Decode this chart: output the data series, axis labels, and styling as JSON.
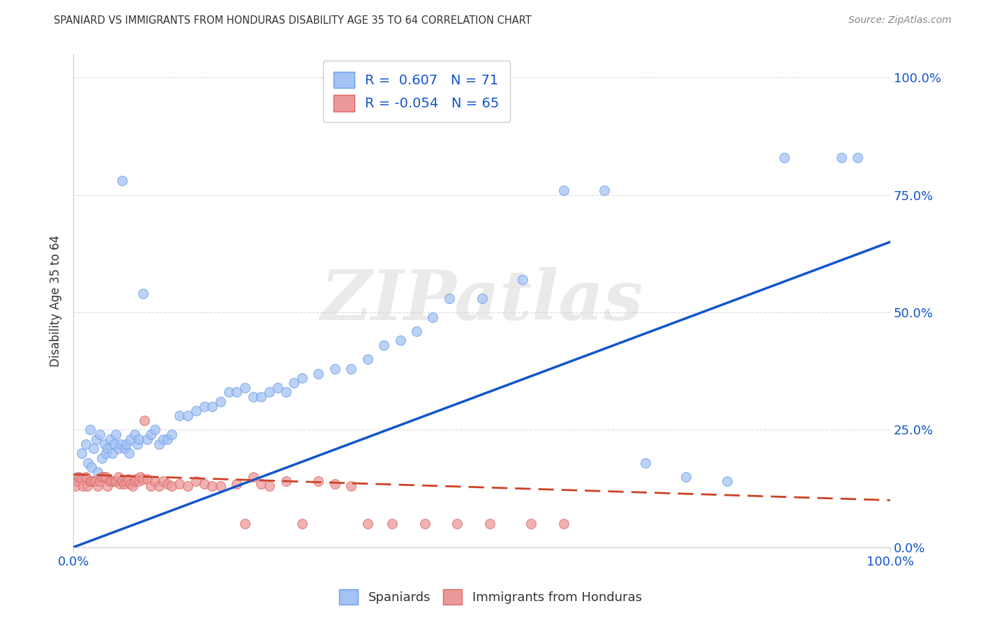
{
  "title": "SPANIARD VS IMMIGRANTS FROM HONDURAS DISABILITY AGE 35 TO 64 CORRELATION CHART",
  "source": "Source: ZipAtlas.com",
  "ylabel": "Disability Age 35 to 64",
  "ytick_labels": [
    "0.0%",
    "25.0%",
    "50.0%",
    "75.0%",
    "100.0%"
  ],
  "ytick_values": [
    0.0,
    0.25,
    0.5,
    0.75,
    1.0
  ],
  "xlim": [
    0.0,
    1.0
  ],
  "ylim": [
    0.0,
    1.05
  ],
  "blue_scatter_color": "#a4c2f4",
  "blue_edge_color": "#6d9eeb",
  "pink_scatter_color": "#ea9999",
  "pink_edge_color": "#e06666",
  "blue_line_color": "#1155cc",
  "pink_line_color": "#cc4125",
  "R_blue": 0.607,
  "N_blue": 71,
  "R_pink": -0.054,
  "N_pink": 65,
  "watermark": "ZIPatlas",
  "legend_label_blue": "Spaniards",
  "legend_label_pink": "Immigrants from Honduras",
  "blue_line_x": [
    0.0,
    1.0
  ],
  "blue_line_y": [
    0.0,
    0.65
  ],
  "pink_line_x": [
    0.0,
    1.0
  ],
  "pink_line_y": [
    0.155,
    0.1
  ],
  "blue_x": [
    0.005,
    0.01,
    0.015,
    0.018,
    0.02,
    0.022,
    0.025,
    0.028,
    0.03,
    0.032,
    0.035,
    0.038,
    0.04,
    0.042,
    0.045,
    0.048,
    0.05,
    0.052,
    0.055,
    0.058,
    0.06,
    0.063,
    0.065,
    0.068,
    0.07,
    0.075,
    0.078,
    0.08,
    0.085,
    0.09,
    0.095,
    0.1,
    0.105,
    0.11,
    0.115,
    0.12,
    0.13,
    0.14,
    0.15,
    0.16,
    0.17,
    0.18,
    0.19,
    0.2,
    0.21,
    0.22,
    0.23,
    0.24,
    0.25,
    0.26,
    0.27,
    0.28,
    0.3,
    0.32,
    0.34,
    0.36,
    0.38,
    0.4,
    0.42,
    0.44,
    0.46,
    0.5,
    0.55,
    0.6,
    0.65,
    0.7,
    0.75,
    0.8,
    0.87,
    0.94,
    0.96
  ],
  "blue_y": [
    0.15,
    0.2,
    0.22,
    0.18,
    0.25,
    0.17,
    0.21,
    0.23,
    0.16,
    0.24,
    0.19,
    0.22,
    0.2,
    0.21,
    0.23,
    0.2,
    0.22,
    0.24,
    0.21,
    0.22,
    0.78,
    0.21,
    0.22,
    0.2,
    0.23,
    0.24,
    0.22,
    0.23,
    0.54,
    0.23,
    0.24,
    0.25,
    0.22,
    0.23,
    0.23,
    0.24,
    0.28,
    0.28,
    0.29,
    0.3,
    0.3,
    0.31,
    0.33,
    0.33,
    0.34,
    0.32,
    0.32,
    0.33,
    0.34,
    0.33,
    0.35,
    0.36,
    0.37,
    0.38,
    0.38,
    0.4,
    0.43,
    0.44,
    0.46,
    0.49,
    0.53,
    0.53,
    0.57,
    0.76,
    0.76,
    0.18,
    0.15,
    0.14,
    0.83,
    0.83,
    0.83
  ],
  "pink_x": [
    0.002,
    0.005,
    0.007,
    0.01,
    0.012,
    0.015,
    0.017,
    0.02,
    0.022,
    0.025,
    0.027,
    0.03,
    0.032,
    0.035,
    0.037,
    0.04,
    0.042,
    0.045,
    0.047,
    0.05,
    0.052,
    0.055,
    0.057,
    0.06,
    0.062,
    0.065,
    0.067,
    0.07,
    0.072,
    0.075,
    0.077,
    0.08,
    0.082,
    0.085,
    0.087,
    0.09,
    0.095,
    0.1,
    0.105,
    0.11,
    0.115,
    0.12,
    0.13,
    0.14,
    0.15,
    0.16,
    0.17,
    0.18,
    0.2,
    0.21,
    0.22,
    0.23,
    0.24,
    0.26,
    0.28,
    0.3,
    0.32,
    0.34,
    0.36,
    0.39,
    0.43,
    0.47,
    0.51,
    0.56,
    0.6
  ],
  "pink_y": [
    0.13,
    0.14,
    0.15,
    0.145,
    0.13,
    0.15,
    0.13,
    0.14,
    0.14,
    0.14,
    0.14,
    0.13,
    0.14,
    0.15,
    0.15,
    0.15,
    0.13,
    0.14,
    0.14,
    0.14,
    0.14,
    0.15,
    0.135,
    0.14,
    0.135,
    0.14,
    0.145,
    0.135,
    0.13,
    0.14,
    0.145,
    0.14,
    0.15,
    0.145,
    0.27,
    0.145,
    0.13,
    0.14,
    0.13,
    0.14,
    0.135,
    0.13,
    0.135,
    0.13,
    0.14,
    0.135,
    0.13,
    0.13,
    0.135,
    0.05,
    0.15,
    0.135,
    0.13,
    0.14,
    0.05,
    0.14,
    0.135,
    0.13,
    0.05,
    0.05,
    0.05,
    0.05,
    0.05,
    0.05,
    0.05
  ]
}
